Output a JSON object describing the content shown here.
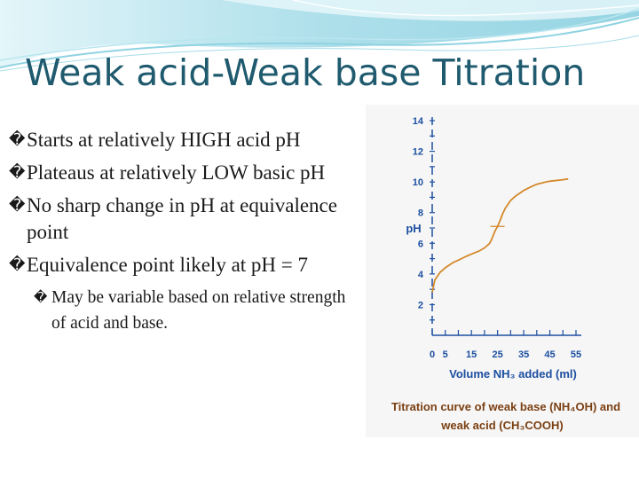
{
  "slide": {
    "title": "Weak acid-Weak base Titration",
    "bullet_glyph": "�",
    "bullets": [
      "Starts at relatively HIGH acid pH",
      "Plateaus at relatively LOW basic pH",
      "No sharp change in pH at equivalence point",
      "Equivalence point likely  at pH = 7"
    ],
    "sub_bullet": "May be variable based on relative strength of acid and base."
  },
  "chart_data": {
    "type": "line",
    "title": "",
    "caption_line1": "Titration curve of weak base (NH₄OH) and",
    "caption_line2": "weak acid (CH₃COOH)",
    "xlabel": "Volume NH₃ added (ml)",
    "ylabel": "pH",
    "xlim": [
      0,
      55
    ],
    "ylim": [
      0,
      14
    ],
    "x_ticks": [
      0,
      5,
      10,
      15,
      20,
      25,
      30,
      35,
      40,
      45,
      50,
      55
    ],
    "x_tick_labels": [
      "0",
      "5",
      "15",
      "25",
      "35",
      "45",
      "55"
    ],
    "x_tick_label_values": [
      0,
      5,
      15,
      25,
      35,
      45,
      55
    ],
    "y_tick_labels": [
      "2",
      "4",
      "6",
      "8",
      "10",
      "12",
      "14"
    ],
    "y_tick_label_values": [
      2,
      4,
      6,
      8,
      10,
      12,
      14
    ],
    "series": [
      {
        "color": "#d4892a",
        "x": [
          0,
          1,
          3,
          5,
          8,
          10,
          13,
          15,
          18,
          20,
          22,
          23,
          24,
          25,
          26,
          27,
          28,
          30,
          32,
          35,
          38,
          40,
          43,
          45,
          50,
          52
        ],
        "y": [
          2.8,
          3.6,
          4.1,
          4.4,
          4.75,
          4.9,
          5.15,
          5.3,
          5.5,
          5.7,
          6.0,
          6.35,
          6.8,
          7.1,
          7.5,
          7.95,
          8.3,
          8.8,
          9.1,
          9.45,
          9.7,
          9.85,
          9.98,
          10.05,
          10.15,
          10.2
        ]
      }
    ],
    "equivalence_marker": {
      "x": 25,
      "y": 7.1
    }
  },
  "colors": {
    "title": "#1f5a6e",
    "axis": "#1d4fa0",
    "curve": "#d4892a",
    "caption": "#7a3f12"
  }
}
